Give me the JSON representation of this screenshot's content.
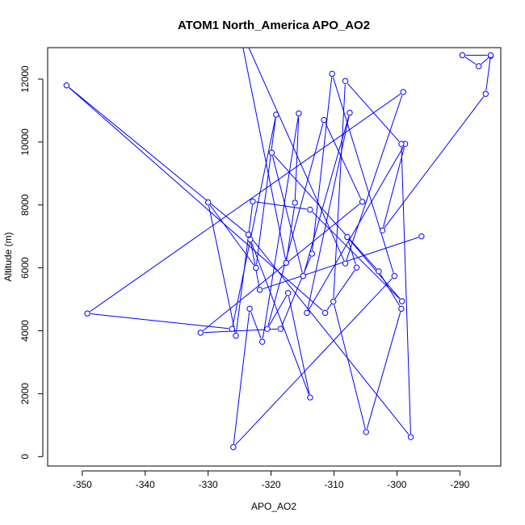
{
  "chart_data": {
    "type": "line",
    "title": "ATOM1 North_America APO_AO2",
    "xlabel": "APO_AO2",
    "ylabel": "Altitude (m)",
    "xlim": [
      -355.5,
      -283.5
    ],
    "ylim": [
      -300,
      13000
    ],
    "xticks": [
      -350,
      -340,
      -330,
      -320,
      -310,
      -300,
      -290
    ],
    "yticks": [
      0,
      2000,
      4000,
      6000,
      8000,
      10000,
      12000
    ],
    "grid": false,
    "line_color": "#0000ff",
    "series": [
      {
        "x": [
          -285.1,
          -287.0,
          -289.6,
          -285.1,
          -285.9,
          -302.3,
          -298.7,
          -314.3,
          -307.5,
          -314.9,
          -319.9,
          -302.9,
          -299.3,
          -304.9,
          -310.1,
          -308.2,
          -299.3,
          -297.8,
          -323.6,
          -352.5,
          -311.4,
          -306.4,
          -307.9,
          -299.2,
          -313.8,
          -322.9,
          -325.6,
          -330.0,
          -322.4,
          -319.2,
          -326.2,
          -349.2,
          -299.0,
          -308.2,
          -325.2,
          -317.6,
          -316.2,
          -315.6,
          -321.4,
          -323.4,
          -326.0,
          -300.4,
          -310.3,
          -313.5,
          -318.5,
          -331.2,
          -305.5,
          -311.6,
          -320.6,
          -317.3,
          -313.8,
          -323.3,
          -321.8,
          -296.1
        ],
        "y": [
          12740,
          12410,
          12760,
          12760,
          11530,
          7190,
          9940,
          4570,
          10930,
          5740,
          9660,
          5890,
          4700,
          780,
          4930,
          11940,
          9940,
          620,
          7060,
          11800,
          4570,
          6010,
          6980,
          4940,
          7850,
          8110,
          3840,
          8080,
          6000,
          10870,
          4060,
          4550,
          11590,
          6140,
          13740,
          6160,
          8070,
          10910,
          3650,
          4700,
          300,
          5740,
          12170,
          6450,
          4060,
          3940,
          8100,
          10700,
          4060,
          5200,
          1880,
          6900,
          5300,
          7000
        ]
      }
    ]
  }
}
